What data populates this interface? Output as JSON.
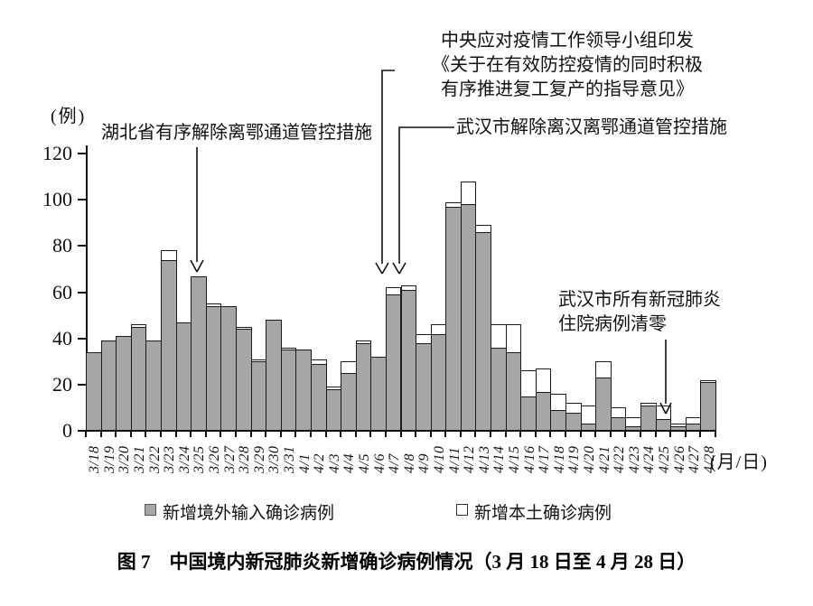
{
  "y_axis": {
    "unit_label": "(例)",
    "ticks": [
      "0",
      "20",
      "40",
      "60",
      "80",
      "100",
      "120"
    ]
  },
  "x_axis": {
    "unit_label": "(月/日)"
  },
  "legend": {
    "imported_label": "新增境外输入确诊病例",
    "local_label": "新增本土确诊病例"
  },
  "caption": "图 7　中国境内新冠肺炎新增确诊病例情况（3 月 18 日至 4 月 28 日）",
  "annotations": {
    "hubei": "湖北省有序解除离鄂通道管控措施",
    "central_line1": "中央应对疫情工作领导小组印发",
    "central_line2": "《关于在有效防控疫情的同时积极",
    "central_line3": "有序推进复工复产的指导意见》",
    "wuhan_lift": "武汉市解除离汉离鄂通道管控措施",
    "wuhan_zero_line1": "武汉市所有新冠肺炎",
    "wuhan_zero_line2": "住院病例清零"
  },
  "chart_data": {
    "type": "bar",
    "stacked": true,
    "title": "图 7　中国境内新冠肺炎新增确诊病例情况（3 月 18 日至 4 月 28 日）",
    "xlabel": "(月/日)",
    "ylabel": "(例)",
    "ylim": [
      0,
      120
    ],
    "y_tick_step": 20,
    "grid": false,
    "legend_position": "bottom",
    "categories": [
      "3/18",
      "3/19",
      "3/20",
      "3/21",
      "3/22",
      "3/23",
      "3/24",
      "3/25",
      "3/26",
      "3/27",
      "3/28",
      "3/29",
      "3/30",
      "3/31",
      "4/1",
      "4/2",
      "4/3",
      "4/4",
      "4/5",
      "4/6",
      "4/7",
      "4/8",
      "4/9",
      "4/10",
      "4/11",
      "4/12",
      "4/13",
      "4/14",
      "4/15",
      "4/16",
      "4/17",
      "4/18",
      "4/19",
      "4/20",
      "4/21",
      "4/22",
      "4/23",
      "4/24",
      "4/25",
      "4/26",
      "4/27",
      "4/28"
    ],
    "series": [
      {
        "name": "新增境外输入确诊病例",
        "color": "#a6a6a6",
        "values": [
          34,
          39,
          41,
          45,
          39,
          74,
          47,
          67,
          54,
          54,
          44,
          30,
          48,
          35,
          35,
          29,
          18,
          25,
          38,
          32,
          59,
          61,
          38,
          42,
          97,
          98,
          86,
          36,
          34,
          15,
          17,
          9,
          8,
          3,
          23,
          6,
          2,
          11,
          5,
          2,
          3,
          21
        ]
      },
      {
        "name": "新增本土确诊病例",
        "color": "#ffffff",
        "values": [
          0,
          0,
          0,
          1,
          0,
          4,
          0,
          0,
          1,
          0,
          1,
          1,
          0,
          1,
          0,
          2,
          1,
          5,
          1,
          0,
          3,
          2,
          4,
          4,
          2,
          10,
          3,
          10,
          12,
          11,
          10,
          7,
          4,
          8,
          7,
          4,
          4,
          1,
          6,
          1,
          3,
          1
        ]
      }
    ],
    "annotations": [
      {
        "text": "湖北省有序解除离鄂通道管控措施",
        "target_category": "3/25"
      },
      {
        "text": "中央应对疫情工作领导小组印发《关于在有效防控疫情的同时积极有序推进复工复产的指导意见》",
        "target_category": "4/7"
      },
      {
        "text": "武汉市解除离汉离鄂通道管控措施",
        "target_category": "4/8"
      },
      {
        "text": "武汉市所有新冠肺炎住院病例清零",
        "target_category": "4/26"
      }
    ]
  }
}
